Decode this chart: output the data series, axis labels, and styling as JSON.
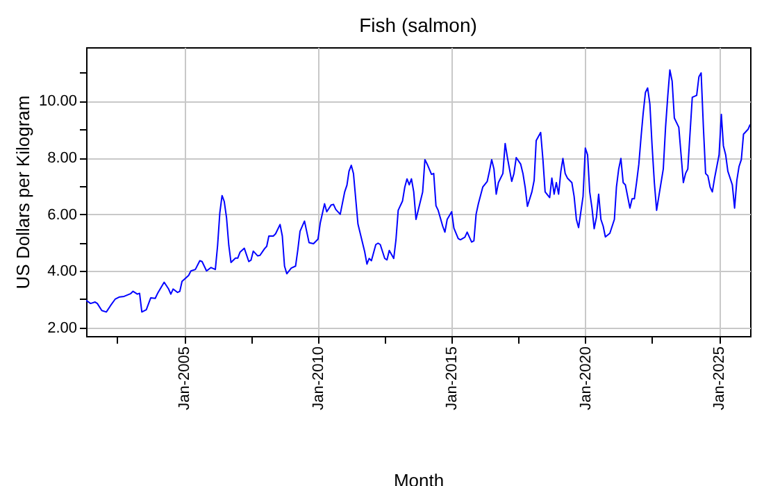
{
  "chart_data": {
    "type": "line",
    "title": "Fish (salmon)",
    "xlabel": "Month",
    "ylabel": "US Dollars per Kilogram",
    "xlim": [
      "2001-05",
      "2026-03"
    ],
    "ylim": [
      1.7,
      11.9
    ],
    "xticks": [
      {
        "value": "2002-07",
        "label": null
      },
      {
        "value": "2005-01",
        "label": "Jan-2005"
      },
      {
        "value": "2007-07",
        "label": null
      },
      {
        "value": "2010-01",
        "label": "Jan-2010"
      },
      {
        "value": "2012-07",
        "label": null
      },
      {
        "value": "2015-01",
        "label": "Jan-2015"
      },
      {
        "value": "2017-07",
        "label": null
      },
      {
        "value": "2020-01",
        "label": "Jan-2020"
      },
      {
        "value": "2022-07",
        "label": null
      },
      {
        "value": "2025-01",
        "label": "Jan-2025"
      }
    ],
    "yticks": [
      {
        "value": 2,
        "label": "2.00"
      },
      {
        "value": 3,
        "label": null
      },
      {
        "value": 4,
        "label": "4.00"
      },
      {
        "value": 5,
        "label": null
      },
      {
        "value": 6,
        "label": "6.00"
      },
      {
        "value": 7,
        "label": null
      },
      {
        "value": 8,
        "label": "8.00"
      },
      {
        "value": 9,
        "label": null
      },
      {
        "value": 10,
        "label": "10.00"
      },
      {
        "value": 11,
        "label": null
      }
    ],
    "grid": true,
    "series": [
      {
        "color": "#0000ff",
        "x": [
          "2001-05",
          "2001-07",
          "2001-09",
          "2001-10",
          "2001-12",
          "2002-02",
          "2002-04",
          "2002-06",
          "2002-08",
          "2002-10",
          "2003-01",
          "2003-02",
          "2003-04",
          "2003-05",
          "2003-06",
          "2003-08",
          "2003-10",
          "2003-12",
          "2004-01",
          "2004-04",
          "2004-06",
          "2004-07",
          "2004-08",
          "2004-10",
          "2004-11",
          "2004-12",
          "2005-03",
          "2005-04",
          "2005-06",
          "2005-08",
          "2005-09",
          "2005-11",
          "2006-01",
          "2006-03",
          "2006-04",
          "2006-05",
          "2006-06",
          "2006-07",
          "2006-08",
          "2006-09",
          "2006-10",
          "2006-12",
          "2007-01",
          "2007-02",
          "2007-04",
          "2007-06",
          "2007-07",
          "2007-08",
          "2007-10",
          "2007-11",
          "2008-01",
          "2008-02",
          "2008-03",
          "2008-05",
          "2008-06",
          "2008-08",
          "2008-09",
          "2008-10",
          "2008-11",
          "2009-01",
          "2009-03",
          "2009-04",
          "2009-05",
          "2009-07",
          "2009-09",
          "2009-11",
          "2010-01",
          "2010-02",
          "2010-04",
          "2010-05",
          "2010-07",
          "2010-08",
          "2010-09",
          "2010-11",
          "2011-01",
          "2011-02",
          "2011-03",
          "2011-04",
          "2011-05",
          "2011-07",
          "2011-08",
          "2011-10",
          "2011-11",
          "2011-12",
          "2012-01",
          "2012-03",
          "2012-04",
          "2012-05",
          "2012-07",
          "2012-08",
          "2012-09",
          "2012-11",
          "2012-12",
          "2013-01",
          "2013-03",
          "2013-04",
          "2013-05",
          "2013-06",
          "2013-07",
          "2013-08",
          "2013-09",
          "2013-10",
          "2013-12",
          "2014-01",
          "2014-02",
          "2014-04",
          "2014-05",
          "2014-06",
          "2014-07",
          "2014-09",
          "2014-10",
          "2014-11",
          "2015-01",
          "2015-02",
          "2015-04",
          "2015-05",
          "2015-07",
          "2015-08",
          "2015-10",
          "2015-11",
          "2015-12",
          "2016-01",
          "2016-03",
          "2016-05",
          "2016-06",
          "2016-07",
          "2016-08",
          "2016-09",
          "2016-10",
          "2016-12",
          "2017-01",
          "2017-02",
          "2017-04",
          "2017-05",
          "2017-06",
          "2017-08",
          "2017-09",
          "2017-10",
          "2017-11",
          "2018-01",
          "2018-02",
          "2018-03",
          "2018-05",
          "2018-06",
          "2018-07",
          "2018-09",
          "2018-10",
          "2018-11",
          "2018-12",
          "2019-01",
          "2019-02",
          "2019-03",
          "2019-04",
          "2019-05",
          "2019-07",
          "2019-08",
          "2019-09",
          "2019-10",
          "2019-12",
          "2020-01",
          "2020-02",
          "2020-03",
          "2020-04",
          "2020-05",
          "2020-06",
          "2020-07",
          "2020-08",
          "2020-09",
          "2020-10",
          "2020-12",
          "2021-02",
          "2021-03",
          "2021-04",
          "2021-05",
          "2021-06",
          "2021-07",
          "2021-09",
          "2021-10",
          "2021-11",
          "2021-12",
          "2022-01",
          "2022-02",
          "2022-03",
          "2022-04",
          "2022-05",
          "2022-06",
          "2022-07",
          "2022-08",
          "2022-09",
          "2022-10",
          "2022-12",
          "2023-01",
          "2023-02",
          "2023-03",
          "2023-04",
          "2023-05",
          "2023-07",
          "2023-08",
          "2023-09",
          "2023-10",
          "2023-11",
          "2024-01",
          "2024-03",
          "2024-04",
          "2024-05",
          "2024-06",
          "2024-07",
          "2024-08",
          "2024-09",
          "2024-10",
          "2024-11",
          "2025-01",
          "2025-02",
          "2025-03",
          "2025-04",
          "2025-05",
          "2025-07",
          "2025-08",
          "2025-09",
          "2025-10",
          "2025-11",
          "2025-12",
          "2026-02",
          "2026-03"
        ],
        "values": [
          2.96,
          2.85,
          2.9,
          2.85,
          2.6,
          2.55,
          2.78,
          3.0,
          3.08,
          3.1,
          3.2,
          3.28,
          3.18,
          3.21,
          2.55,
          2.63,
          3.05,
          3.03,
          3.2,
          3.6,
          3.36,
          3.18,
          3.36,
          3.24,
          3.28,
          3.63,
          3.84,
          4.0,
          4.05,
          4.36,
          4.33,
          4.0,
          4.12,
          4.05,
          4.9,
          6.04,
          6.66,
          6.45,
          5.88,
          4.9,
          4.3,
          4.45,
          4.45,
          4.66,
          4.8,
          4.33,
          4.38,
          4.7,
          4.53,
          4.55,
          4.78,
          4.87,
          5.23,
          5.23,
          5.31,
          5.64,
          5.23,
          4.17,
          3.9,
          4.1,
          4.17,
          4.75,
          5.4,
          5.76,
          5.0,
          4.96,
          5.12,
          5.69,
          6.37,
          6.09,
          6.33,
          6.35,
          6.17,
          6.0,
          6.79,
          7.03,
          7.52,
          7.73,
          7.44,
          5.66,
          5.33,
          4.68,
          4.24,
          4.44,
          4.36,
          4.93,
          4.98,
          4.93,
          4.44,
          4.39,
          4.72,
          4.44,
          5.09,
          6.14,
          6.47,
          6.96,
          7.25,
          7.04,
          7.25,
          6.79,
          5.82,
          6.14,
          6.79,
          7.93,
          7.77,
          7.41,
          7.44,
          6.3,
          6.14,
          5.58,
          5.37,
          5.82,
          6.09,
          5.51,
          5.14,
          5.1,
          5.19,
          5.37,
          5.02,
          5.06,
          6.0,
          6.37,
          6.96,
          7.16,
          7.53,
          7.93,
          7.6,
          6.71,
          7.12,
          7.44,
          8.5,
          8.0,
          7.16,
          7.44,
          8.0,
          7.77,
          7.44,
          6.96,
          6.28,
          6.79,
          7.2,
          8.6,
          8.89,
          7.93,
          6.79,
          6.59,
          7.28,
          6.71,
          7.12,
          6.71,
          7.52,
          7.97,
          7.44,
          7.28,
          7.12,
          6.63,
          5.82,
          5.53,
          6.63,
          8.34,
          8.1,
          6.79,
          6.22,
          5.49,
          5.9,
          6.71,
          5.82,
          5.58,
          5.2,
          5.33,
          5.82,
          6.96,
          7.6,
          7.97,
          7.12,
          7.04,
          6.22,
          6.55,
          6.55,
          7.12,
          7.77,
          8.75,
          9.56,
          10.3,
          10.46,
          9.89,
          8.42,
          7.12,
          6.14,
          6.63,
          7.6,
          9.07,
          10.2,
          11.1,
          10.7,
          9.4,
          9.07,
          8.1,
          7.12,
          7.44,
          7.6,
          10.13,
          10.2,
          10.86,
          10.99,
          9.07,
          7.44,
          7.36,
          6.96,
          6.79,
          7.28,
          8.1,
          9.53,
          8.42,
          8.1,
          7.52,
          7.04,
          6.22,
          7.2,
          7.69,
          7.93,
          8.83,
          9.0,
          9.17
        ]
      }
    ]
  }
}
